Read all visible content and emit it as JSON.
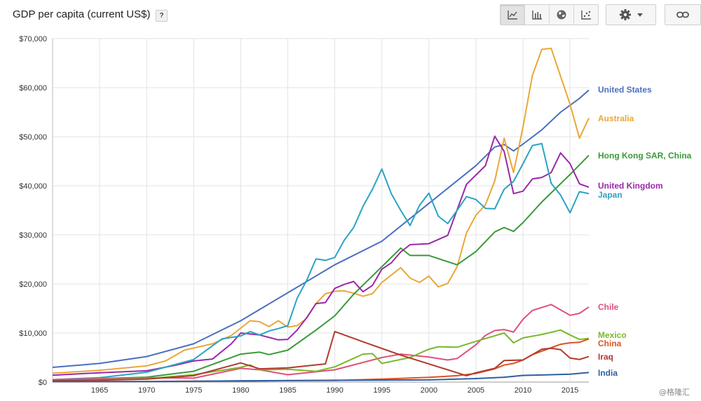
{
  "header": {
    "title": "GDP per capita (current US$)",
    "help_label": "?"
  },
  "toolbar": {
    "buttons": [
      {
        "name": "line-chart-icon",
        "active": true
      },
      {
        "name": "bar-chart-icon",
        "active": false
      },
      {
        "name": "globe-icon",
        "active": false
      },
      {
        "name": "scatter-chart-icon",
        "active": false
      }
    ],
    "settings_icon": "gear-icon",
    "link_icon": "link-icon"
  },
  "watermark": "@格隆汇",
  "chart_data": {
    "type": "line",
    "title": "GDP per capita (current US$)",
    "xlim": [
      1960,
      2017
    ],
    "ylim": [
      0,
      70000
    ],
    "x_ticks": [
      1965,
      1970,
      1975,
      1980,
      1985,
      1990,
      1995,
      2000,
      2005,
      2010,
      2015
    ],
    "y_ticks": [
      0,
      10000,
      20000,
      30000,
      40000,
      50000,
      60000,
      70000
    ],
    "y_tick_labels": [
      "$0",
      "$10,000",
      "$20,000",
      "$30,000",
      "$40,000",
      "$50,000",
      "$60,000",
      "$70,000"
    ],
    "grid": true,
    "legend": "right, labels at line ends",
    "series": [
      {
        "name": "United States",
        "color": "#4a6fbf",
        "x": [
          1960,
          1965,
          1970,
          1975,
          1980,
          1985,
          1990,
          1995,
          2000,
          2005,
          2007,
          2008,
          2009,
          2010,
          2012,
          2014,
          2016,
          2017
        ],
        "y": [
          3000,
          3800,
          5200,
          7800,
          12500,
          18200,
          23900,
          28700,
          36400,
          44100,
          47900,
          48400,
          47100,
          48500,
          51400,
          55000,
          57800,
          59500
        ]
      },
      {
        "name": "Australia",
        "color": "#e8a838",
        "x": [
          1960,
          1965,
          1970,
          1972,
          1974,
          1977,
          1979,
          1980,
          1981,
          1982,
          1983,
          1984,
          1985,
          1986,
          1987,
          1988,
          1989,
          1990,
          1991,
          1992,
          1993,
          1994,
          1995,
          1996,
          1997,
          1998,
          1999,
          2000,
          2001,
          2002,
          2003,
          2004,
          2005,
          2006,
          2007,
          2008,
          2009,
          2010,
          2011,
          2012,
          2013,
          2014,
          2015,
          2016,
          2017
        ],
        "y": [
          1800,
          2400,
          3300,
          4300,
          6500,
          7800,
          9500,
          11000,
          12500,
          12300,
          11300,
          12500,
          11200,
          11500,
          13000,
          16000,
          18000,
          18500,
          18600,
          18100,
          17500,
          18000,
          20300,
          21800,
          23300,
          21200,
          20300,
          21600,
          19400,
          20100,
          23500,
          30400,
          34000,
          36100,
          41000,
          49700,
          42700,
          52000,
          62500,
          67800,
          68000,
          62300,
          56600,
          49700,
          53800
        ]
      },
      {
        "name": "Hong Kong SAR, China",
        "color": "#3a9a3a",
        "x": [
          1960,
          1965,
          1970,
          1975,
          1980,
          1982,
          1983,
          1985,
          1988,
          1990,
          1992,
          1995,
          1997,
          1998,
          2000,
          2003,
          2005,
          2007,
          2008,
          2009,
          2010,
          2012,
          2015,
          2017
        ],
        "y": [
          400,
          700,
          1000,
          2200,
          5700,
          6100,
          5600,
          6500,
          10600,
          13500,
          17900,
          23500,
          27300,
          25800,
          25800,
          23900,
          26600,
          30600,
          31500,
          30700,
          32500,
          36700,
          42300,
          46200
        ]
      },
      {
        "name": "United Kingdom",
        "color": "#9c27a8",
        "x": [
          1960,
          1965,
          1970,
          1973,
          1975,
          1977,
          1979,
          1980,
          1982,
          1984,
          1985,
          1986,
          1987,
          1988,
          1989,
          1990,
          1991,
          1992,
          1993,
          1994,
          1995,
          1996,
          1997,
          1998,
          2000,
          2002,
          2004,
          2006,
          2007,
          2008,
          2009,
          2010,
          2011,
          2012,
          2013,
          2014,
          2015,
          2016,
          2017
        ],
        "y": [
          1400,
          1900,
          2300,
          3400,
          4300,
          4700,
          7800,
          10000,
          9600,
          8600,
          8700,
          10600,
          13100,
          16000,
          16200,
          19100,
          19900,
          20500,
          18400,
          19700,
          23000,
          24300,
          26500,
          28000,
          28200,
          29900,
          40300,
          44100,
          50100,
          47000,
          38400,
          38900,
          41400,
          41700,
          42700,
          46700,
          44500,
          40400,
          39700
        ]
      },
      {
        "name": "Japan",
        "color": "#2ba3c4",
        "x": [
          1960,
          1965,
          1970,
          1975,
          1978,
          1980,
          1981,
          1982,
          1983,
          1984,
          1985,
          1986,
          1987,
          1988,
          1989,
          1990,
          1991,
          1992,
          1993,
          1994,
          1995,
          1996,
          1997,
          1998,
          1999,
          2000,
          2001,
          2002,
          2003,
          2004,
          2005,
          2006,
          2007,
          2008,
          2009,
          2010,
          2011,
          2012,
          2013,
          2014,
          2015,
          2016,
          2017
        ],
        "y": [
          500,
          900,
          2000,
          4600,
          8800,
          9400,
          10300,
          9600,
          10400,
          10900,
          11500,
          17100,
          20700,
          25100,
          24800,
          25400,
          28900,
          31500,
          35800,
          39300,
          43400,
          38400,
          35000,
          31900,
          36000,
          38500,
          33800,
          32300,
          35000,
          37800,
          37200,
          35400,
          35300,
          39300,
          40900,
          44500,
          48200,
          48600,
          40500,
          38100,
          34500,
          38800,
          38400
        ]
      },
      {
        "name": "Chile",
        "color": "#e0507a",
        "x": [
          1960,
          1965,
          1970,
          1975,
          1980,
          1982,
          1985,
          1990,
          1995,
          1997,
          2000,
          2002,
          2003,
          2005,
          2006,
          2007,
          2008,
          2009,
          2010,
          2011,
          2013,
          2015,
          2016,
          2017
        ],
        "y": [
          500,
          700,
          900,
          800,
          2800,
          2500,
          1500,
          2500,
          5000,
          5700,
          5100,
          4500,
          4800,
          7600,
          9500,
          10500,
          10700,
          10200,
          12800,
          14600,
          15800,
          13600,
          14000,
          15300
        ]
      },
      {
        "name": "Mexico",
        "color": "#7ab82c",
        "x": [
          1960,
          1965,
          1970,
          1975,
          1980,
          1981,
          1982,
          1985,
          1988,
          1990,
          1993,
          1994,
          1995,
          1998,
          2000,
          2001,
          2003,
          2005,
          2008,
          2009,
          2010,
          2012,
          2014,
          2015,
          2016,
          2017
        ],
        "y": [
          350,
          500,
          700,
          1500,
          3000,
          3500,
          2500,
          2600,
          2200,
          3100,
          5700,
          5800,
          3800,
          5000,
          6700,
          7200,
          7100,
          8300,
          10000,
          8000,
          9000,
          9700,
          10600,
          9600,
          8700,
          8900
        ]
      },
      {
        "name": "China",
        "color": "#d9541f",
        "x": [
          1960,
          1965,
          1970,
          1975,
          1980,
          1985,
          1990,
          1995,
          2000,
          2003,
          2005,
          2007,
          2008,
          2009,
          2010,
          2011,
          2012,
          2013,
          2014,
          2015,
          2016,
          2017
        ],
        "y": [
          90,
          100,
          110,
          180,
          200,
          300,
          320,
          600,
          960,
          1300,
          1750,
          2700,
          3470,
          3800,
          4500,
          5600,
          6300,
          7000,
          7700,
          8000,
          8100,
          8800
        ]
      },
      {
        "name": "Iraq",
        "color": "#b23a2e",
        "x": [
          1960,
          1965,
          1970,
          1975,
          1980,
          1982,
          1985,
          1988,
          1989,
          1990,
          1993,
          1997,
          2004,
          2005,
          2007,
          2008,
          2010,
          2012,
          2013,
          2014,
          2015,
          2016,
          2017
        ],
        "y": [
          300,
          400,
          600,
          1300,
          3900,
          2700,
          2900,
          3500,
          3700,
          10300,
          8200,
          5500,
          1300,
          1900,
          2800,
          4400,
          4500,
          6700,
          6900,
          6600,
          4900,
          4600,
          5200
        ]
      },
      {
        "name": "India",
        "color": "#2f5fa5",
        "x": [
          1960,
          1965,
          1970,
          1975,
          1980,
          1985,
          1990,
          1995,
          2000,
          2005,
          2008,
          2010,
          2012,
          2015,
          2017
        ],
        "y": [
          80,
          120,
          110,
          160,
          270,
          300,
          370,
          380,
          440,
          710,
          990,
          1350,
          1450,
          1600,
          1940
        ]
      }
    ]
  }
}
